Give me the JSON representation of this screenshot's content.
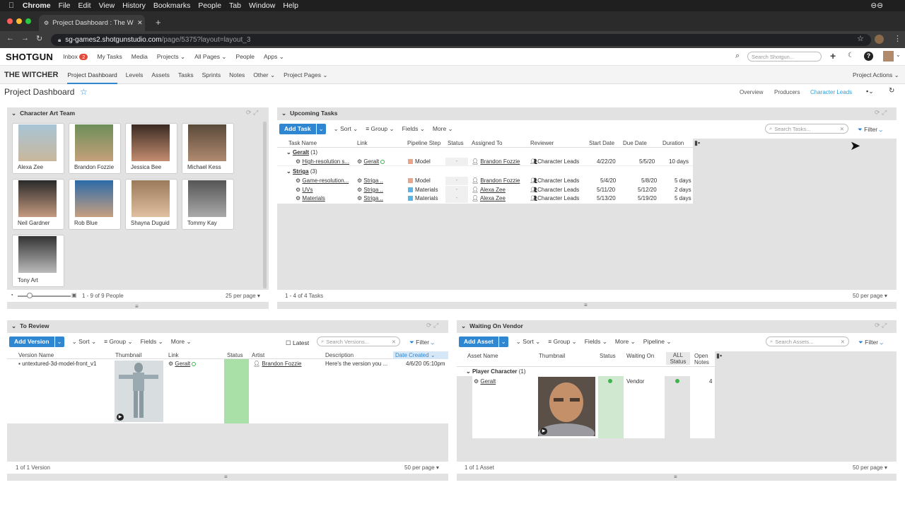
{
  "mac": {
    "app": "Chrome",
    "menu": [
      "File",
      "Edit",
      "View",
      "History",
      "Bookmarks",
      "People",
      "Tab",
      "Window",
      "Help"
    ]
  },
  "browser": {
    "tab_title": "Project Dashboard : The Witch",
    "url_host": "sg-games2.shotgunstudio.com",
    "url_path": "/page/5375?layout=layout_3"
  },
  "topnav": {
    "logo": "SHOTGUN",
    "inbox": "Inbox",
    "inbox_count": "2",
    "items": [
      "My Tasks",
      "Media",
      "Projects",
      "All Pages",
      "People",
      "Apps"
    ],
    "search_placeholder": "Search Shotgun..."
  },
  "subnav": {
    "project": "THE WITCHER",
    "items": [
      "Project Dashboard",
      "Levels",
      "Assets",
      "Tasks",
      "Sprints",
      "Notes",
      "Other",
      "Project Pages"
    ],
    "actions": "Project Actions"
  },
  "page": {
    "title": "Project Dashboard",
    "star": "☆",
    "views": [
      "Overview",
      "Producers",
      "Character Leads"
    ]
  },
  "art_team": {
    "title": "Character Art Team",
    "people": [
      "Alexa Zee",
      "Brandon Fozzie",
      "Jessica Bee",
      "Michael Kess",
      "Neil Gardner",
      "Rob Blue",
      "Shayna Duguid",
      "Tommy Kay",
      "Tony Art"
    ],
    "count": "1 - 9 of 9 People",
    "per_page": "25 per page ▾"
  },
  "tasks": {
    "title": "Upcoming Tasks",
    "add": "Add Task",
    "toolbar": [
      "Sort",
      "Group",
      "Fields",
      "More"
    ],
    "search": "Search Tasks...",
    "filter": "Filter",
    "columns": [
      "Task Name",
      "Link",
      "Pipeline Step",
      "Status",
      "Assigned To",
      "Reviewer",
      "Start Date",
      "Due Date",
      "Duration"
    ],
    "groups": [
      {
        "name": "Geralt",
        "count": "(1)",
        "rows": [
          [
            "High-resolution s...",
            "Geralt",
            "Model",
            "-",
            "Brandon Fozzie",
            "Character Leads",
            "4/22/20",
            "5/5/20",
            "10 days"
          ]
        ]
      },
      {
        "name": "Striga",
        "count": "(3)",
        "rows": [
          [
            "Game-resolution...",
            "Striga ..",
            "Model",
            "-",
            "Brandon Fozzie",
            "Character Leads",
            "5/4/20",
            "5/8/20",
            "5 days"
          ],
          [
            "UVs",
            "Striga ..",
            "Materials",
            "-",
            "Alexa Zee",
            "Character Leads",
            "5/11/20",
            "5/12/20",
            "2 days"
          ],
          [
            "Materials",
            "Striga ..",
            "Materials",
            "-",
            "Alexa Zee",
            "Character Leads",
            "5/13/20",
            "5/19/20",
            "5 days"
          ]
        ]
      }
    ],
    "count": "1 - 4 of 4 Tasks",
    "per_page": "50 per page ▾"
  },
  "review": {
    "title": "To Review",
    "add": "Add Version",
    "toolbar": [
      "Sort",
      "Group",
      "Fields",
      "More"
    ],
    "latest": "Latest",
    "search": "Search Versions...",
    "filter": "Filter",
    "columns": [
      "Version Name",
      "Thumbnail",
      "Link",
      "Status",
      "Artist",
      "Description",
      "Date Created"
    ],
    "row": [
      "untextured-3d-model-front_v1",
      "Geralt",
      "Brandon Fozzie",
      "Here's the version you ...",
      "4/6/20 05:10pm"
    ],
    "count": "1 of 1 Version",
    "per_page": "50 per page ▾"
  },
  "vendor": {
    "title": "Waiting On Vendor",
    "add": "Add Asset",
    "toolbar": [
      "Sort",
      "Group",
      "Fields",
      "More",
      "Pipeline"
    ],
    "search": "Search Assets...",
    "filter": "Filter",
    "columns": [
      "Asset Name",
      "Thumbnail",
      "Status",
      "Waiting On",
      "ALL Status",
      "Open Notes"
    ],
    "group": "Player Character",
    "group_count": "(1)",
    "row": [
      "Geralt",
      "Vendor",
      "4"
    ],
    "count": "1 of 1 Asset",
    "per_page": "50 per page ▾"
  },
  "colors": {
    "accent": "#2f86d1",
    "model": "#e8a58c",
    "materials": "#5ab4e6",
    "status_green": "#3cb44b",
    "review_green": "#a8e0a8"
  }
}
